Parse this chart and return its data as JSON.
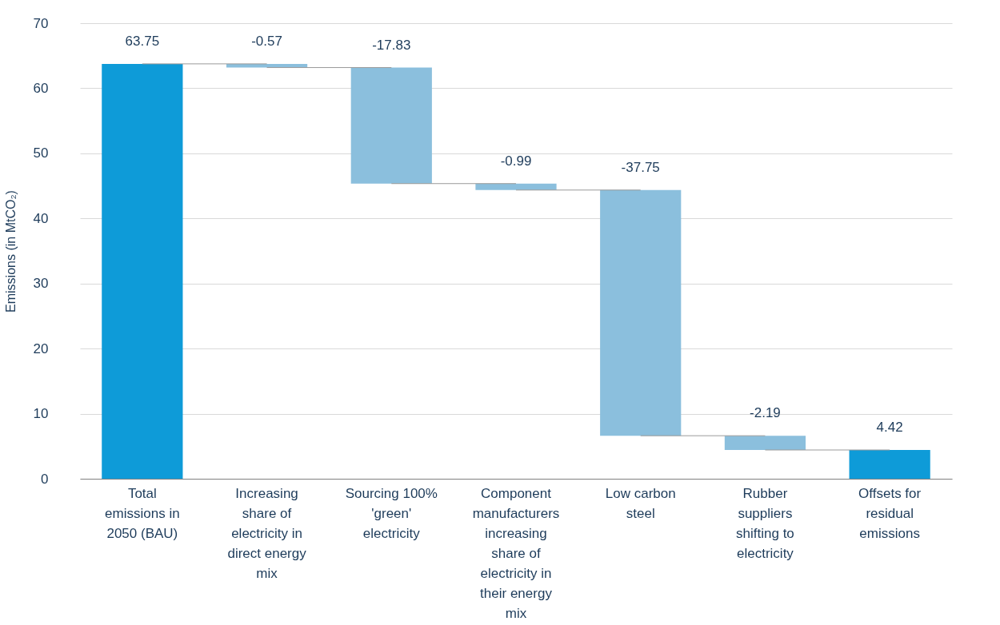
{
  "chart_data": {
    "type": "bar",
    "ylabel": "Emissions (in MtCO₂)",
    "categories": [
      "Total emissions in 2050 (BAU)",
      "Increasing share of electricity in direct energy mix",
      "Sourcing 100% 'green' electricity",
      "Component manufacturers increasing share of electricity in their energy mix",
      "Low carbon steel",
      "Rubber suppliers shifting to electricity",
      "Offsets for residual emissions"
    ],
    "values": [
      63.75,
      -0.57,
      -17.83,
      -0.99,
      -37.75,
      -2.19,
      4.42
    ],
    "base": [
      0,
      63.75,
      63.18,
      45.35,
      44.36,
      6.61,
      0
    ],
    "colors": [
      "#0e9bd8",
      "#8bbfdd",
      "#8bbfdd",
      "#8bbfdd",
      "#8bbfdd",
      "#8bbfdd",
      "#0e9bd8"
    ],
    "ylim": [
      0,
      70
    ],
    "yticks": [
      0,
      10,
      20,
      30,
      40,
      50,
      60,
      70
    ],
    "grid": "y",
    "data_labels": true
  }
}
